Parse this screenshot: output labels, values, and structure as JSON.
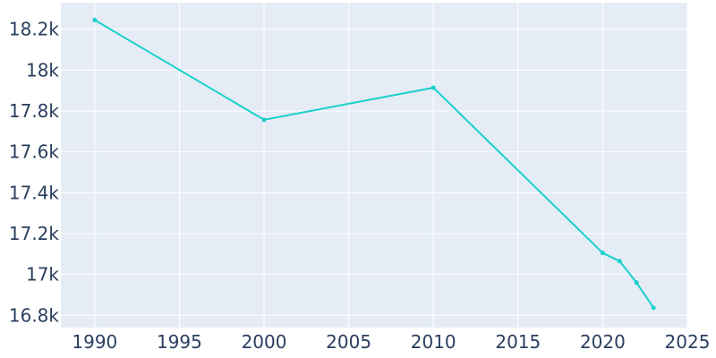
{
  "chart_data": {
    "type": "line",
    "title": "",
    "xlabel": "",
    "ylabel": "",
    "xlim": [
      1988,
      2025
    ],
    "ylim": [
      16740,
      18330
    ],
    "grid": true,
    "x_ticks": [
      1990,
      1995,
      2000,
      2005,
      2010,
      2015,
      2020,
      2025
    ],
    "x_tick_labels": [
      "1990",
      "1995",
      "2000",
      "2005",
      "2010",
      "2015",
      "2020",
      "2025"
    ],
    "y_ticks": [
      16800,
      17000,
      17200,
      17400,
      17600,
      17800,
      18000,
      18200
    ],
    "y_tick_labels": [
      "16.8k",
      "17k",
      "17.2k",
      "17.4k",
      "17.6k",
      "17.8k",
      "18k",
      "18.2k"
    ],
    "series": [
      {
        "x": [
          1990,
          2000,
          2010,
          2020,
          2021,
          2022,
          2023
        ],
        "values": [
          18245,
          17757,
          17914,
          17105,
          17065,
          16960,
          16837
        ]
      }
    ],
    "colors": {
      "plot_background": "#e5ecf6",
      "grid": "#ffffff",
      "line": "#17d1cc",
      "text": "#2a3f5f"
    }
  }
}
